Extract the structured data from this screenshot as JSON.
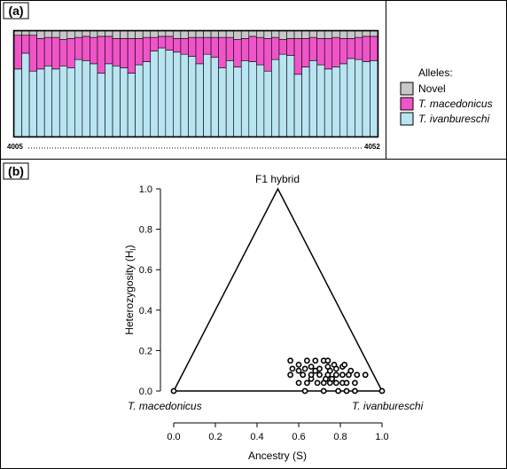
{
  "panels": {
    "a_label": "(a)",
    "b_label": "(b)"
  },
  "colors": {
    "novel": "#c8c8c8",
    "macedonicus": "#ef55c8",
    "ivanbureschi": "#b9e4f2",
    "stroke": "#000000"
  },
  "chart_data": [
    {
      "type": "bar",
      "stacked": true,
      "panel": "(a)",
      "ylim": [
        0,
        1
      ],
      "x_start_label": "4005",
      "x_end_label": "4052",
      "legend": {
        "title": "Alleles:",
        "placement": "right",
        "entries": [
          {
            "key": "novel",
            "label": "Novel",
            "italic": false
          },
          {
            "key": "macedonicus",
            "label": "T. macedonicus",
            "italic": true
          },
          {
            "key": "ivanbureschi",
            "label": "T. ivanbureschi",
            "italic": true
          }
        ]
      },
      "series": [
        {
          "key": "ivanbureschi",
          "values": [
            0.64,
            0.79,
            0.62,
            0.64,
            0.67,
            0.64,
            0.67,
            0.65,
            0.73,
            0.72,
            0.69,
            0.6,
            0.69,
            0.67,
            0.65,
            0.6,
            0.68,
            0.71,
            0.81,
            0.84,
            0.82,
            0.8,
            0.78,
            0.76,
            0.69,
            0.78,
            0.75,
            0.65,
            0.72,
            0.66,
            0.72,
            0.71,
            0.68,
            0.62,
            0.73,
            0.78,
            0.77,
            0.59,
            0.66,
            0.72,
            0.68,
            0.64,
            0.66,
            0.69,
            0.74,
            0.73,
            0.71,
            0.72
          ]
        },
        {
          "key": "macedonicus",
          "values": [
            0.32,
            0.17,
            0.34,
            0.29,
            0.27,
            0.3,
            0.25,
            0.28,
            0.21,
            0.23,
            0.25,
            0.35,
            0.26,
            0.26,
            0.28,
            0.33,
            0.25,
            0.23,
            0.13,
            0.11,
            0.13,
            0.13,
            0.15,
            0.18,
            0.25,
            0.16,
            0.19,
            0.29,
            0.22,
            0.26,
            0.21,
            0.24,
            0.26,
            0.31,
            0.21,
            0.14,
            0.16,
            0.34,
            0.27,
            0.22,
            0.25,
            0.29,
            0.28,
            0.24,
            0.19,
            0.21,
            0.24,
            0.23
          ]
        },
        {
          "key": "novel",
          "values": [
            0.04,
            0.04,
            0.04,
            0.07,
            0.06,
            0.06,
            0.08,
            0.07,
            0.06,
            0.05,
            0.06,
            0.05,
            0.05,
            0.07,
            0.07,
            0.07,
            0.07,
            0.06,
            0.06,
            0.05,
            0.05,
            0.07,
            0.07,
            0.06,
            0.06,
            0.06,
            0.06,
            0.06,
            0.06,
            0.08,
            0.07,
            0.05,
            0.06,
            0.07,
            0.06,
            0.08,
            0.07,
            0.07,
            0.07,
            0.06,
            0.07,
            0.07,
            0.06,
            0.07,
            0.07,
            0.06,
            0.05,
            0.05
          ]
        }
      ]
    },
    {
      "type": "scatter",
      "panel": "(b)",
      "xlabel": "Ancestry (S)",
      "ylabel_main": "Heterozygosity (H",
      "ylabel_sub": "I",
      "ylabel_end": ")",
      "xlim": [
        0,
        1
      ],
      "ylim": [
        0,
        1
      ],
      "x_ticks": [
        "0.0",
        "0.2",
        "0.4",
        "0.6",
        "0.8",
        "1.0"
      ],
      "y_ticks": [
        "0.0",
        "0.2",
        "0.4",
        "0.6",
        "0.8",
        "1.0"
      ],
      "triangle_apex_label": "F1 hybrid",
      "left_corner_label": "T. macedonicus",
      "right_corner_label": "T. ivanbureschi",
      "triangle": [
        [
          0,
          0
        ],
        [
          0.5,
          1
        ],
        [
          1,
          0
        ]
      ],
      "points": [
        {
          "x": 0.63,
          "y": 0.0
        },
        {
          "x": 0.72,
          "y": 0.0
        },
        {
          "x": 0.79,
          "y": 0.0
        },
        {
          "x": 0.83,
          "y": 0.0
        },
        {
          "x": 0.87,
          "y": 0.0
        },
        {
          "x": 0.6,
          "y": 0.04
        },
        {
          "x": 0.64,
          "y": 0.04
        },
        {
          "x": 0.69,
          "y": 0.04
        },
        {
          "x": 0.72,
          "y": 0.04
        },
        {
          "x": 0.75,
          "y": 0.04
        },
        {
          "x": 0.78,
          "y": 0.04
        },
        {
          "x": 0.81,
          "y": 0.04
        },
        {
          "x": 0.83,
          "y": 0.04
        },
        {
          "x": 0.87,
          "y": 0.04
        },
        {
          "x": 0.66,
          "y": 0.06
        },
        {
          "x": 0.73,
          "y": 0.06
        },
        {
          "x": 0.76,
          "y": 0.06
        },
        {
          "x": 0.56,
          "y": 0.08
        },
        {
          "x": 0.62,
          "y": 0.08
        },
        {
          "x": 0.66,
          "y": 0.08
        },
        {
          "x": 0.7,
          "y": 0.08
        },
        {
          "x": 0.74,
          "y": 0.08
        },
        {
          "x": 0.78,
          "y": 0.08
        },
        {
          "x": 0.81,
          "y": 0.08
        },
        {
          "x": 0.84,
          "y": 0.08
        },
        {
          "x": 0.88,
          "y": 0.08
        },
        {
          "x": 0.92,
          "y": 0.08
        },
        {
          "x": 0.6,
          "y": 0.1
        },
        {
          "x": 0.68,
          "y": 0.1
        },
        {
          "x": 0.75,
          "y": 0.1
        },
        {
          "x": 0.85,
          "y": 0.1
        },
        {
          "x": 0.57,
          "y": 0.11
        },
        {
          "x": 0.63,
          "y": 0.11
        },
        {
          "x": 0.7,
          "y": 0.11
        },
        {
          "x": 0.78,
          "y": 0.11
        },
        {
          "x": 0.66,
          "y": 0.12
        },
        {
          "x": 0.74,
          "y": 0.12
        },
        {
          "x": 0.81,
          "y": 0.12
        },
        {
          "x": 0.6,
          "y": 0.13
        },
        {
          "x": 0.77,
          "y": 0.13
        },
        {
          "x": 0.82,
          "y": 0.13
        },
        {
          "x": 0.64,
          "y": 0.15
        },
        {
          "x": 0.56,
          "y": 0.15
        },
        {
          "x": 0.68,
          "y": 0.15
        },
        {
          "x": 0.72,
          "y": 0.15
        },
        {
          "x": 0.74,
          "y": 0.15
        },
        {
          "x": 0.0,
          "y": 0.0
        },
        {
          "x": 1.0,
          "y": 0.0
        }
      ]
    }
  ]
}
